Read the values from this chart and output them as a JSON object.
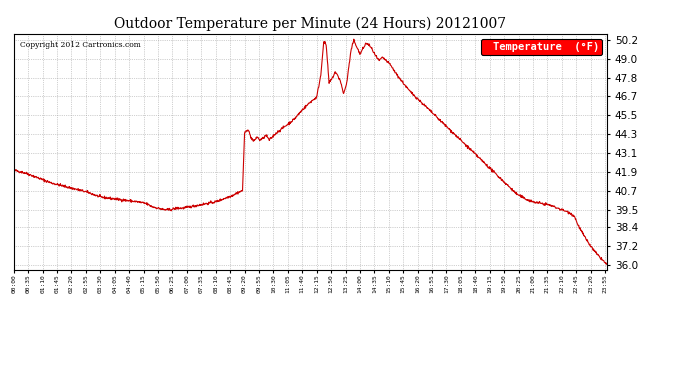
{
  "title": "Outdoor Temperature per Minute (24 Hours) 20121007",
  "copyright_text": "Copyright 2012 Cartronics.com",
  "legend_label": "Temperature  (°F)",
  "line_color": "#cc0000",
  "background_color": "#ffffff",
  "grid_color": "#aaaaaa",
  "ylim": [
    35.7,
    50.6
  ],
  "yticks": [
    36.0,
    37.2,
    38.4,
    39.5,
    40.7,
    41.9,
    43.1,
    44.3,
    45.5,
    46.7,
    47.8,
    49.0,
    50.2
  ],
  "xtick_labels": [
    "00:00",
    "00:35",
    "01:10",
    "01:45",
    "02:20",
    "02:55",
    "03:30",
    "04:05",
    "04:40",
    "05:15",
    "05:50",
    "06:25",
    "07:00",
    "07:35",
    "08:10",
    "08:45",
    "09:20",
    "09:55",
    "10:30",
    "11:05",
    "11:40",
    "12:15",
    "12:50",
    "13:25",
    "14:00",
    "14:35",
    "15:10",
    "15:45",
    "16:20",
    "16:55",
    "17:30",
    "18:05",
    "18:40",
    "19:15",
    "19:50",
    "20:25",
    "21:00",
    "21:35",
    "22:10",
    "22:45",
    "23:20",
    "23:55"
  ],
  "keypoints": [
    [
      0,
      42.0
    ],
    [
      30,
      41.8
    ],
    [
      60,
      41.5
    ],
    [
      90,
      41.2
    ],
    [
      120,
      41.0
    ],
    [
      150,
      40.8
    ],
    [
      180,
      40.6
    ],
    [
      210,
      40.3
    ],
    [
      240,
      40.2
    ],
    [
      270,
      40.1
    ],
    [
      300,
      40.0
    ],
    [
      320,
      39.9
    ],
    [
      335,
      39.7
    ],
    [
      350,
      39.6
    ],
    [
      365,
      39.5
    ],
    [
      380,
      39.5
    ],
    [
      395,
      39.6
    ],
    [
      410,
      39.6
    ],
    [
      430,
      39.7
    ],
    [
      450,
      39.8
    ],
    [
      470,
      39.9
    ],
    [
      490,
      40.0
    ],
    [
      510,
      40.2
    ],
    [
      530,
      40.4
    ],
    [
      545,
      40.6
    ],
    [
      555,
      40.7
    ],
    [
      560,
      44.3
    ],
    [
      568,
      44.6
    ],
    [
      575,
      44.1
    ],
    [
      582,
      43.8
    ],
    [
      590,
      44.1
    ],
    [
      597,
      43.9
    ],
    [
      605,
      44.0
    ],
    [
      612,
      44.2
    ],
    [
      620,
      43.9
    ],
    [
      628,
      44.1
    ],
    [
      635,
      44.3
    ],
    [
      645,
      44.5
    ],
    [
      660,
      44.8
    ],
    [
      680,
      45.2
    ],
    [
      700,
      45.8
    ],
    [
      720,
      46.3
    ],
    [
      735,
      46.6
    ],
    [
      745,
      48.0
    ],
    [
      752,
      50.1
    ],
    [
      758,
      49.9
    ],
    [
      765,
      47.5
    ],
    [
      773,
      47.8
    ],
    [
      780,
      48.2
    ],
    [
      787,
      47.9
    ],
    [
      793,
      47.6
    ],
    [
      800,
      46.8
    ],
    [
      808,
      47.5
    ],
    [
      818,
      49.5
    ],
    [
      825,
      50.2
    ],
    [
      832,
      49.8
    ],
    [
      840,
      49.3
    ],
    [
      848,
      49.7
    ],
    [
      855,
      50.0
    ],
    [
      862,
      49.9
    ],
    [
      870,
      49.6
    ],
    [
      878,
      49.2
    ],
    [
      886,
      48.9
    ],
    [
      895,
      49.1
    ],
    [
      904,
      48.9
    ],
    [
      912,
      48.7
    ],
    [
      920,
      48.4
    ],
    [
      930,
      48.0
    ],
    [
      945,
      47.5
    ],
    [
      960,
      47.0
    ],
    [
      980,
      46.5
    ],
    [
      1000,
      46.0
    ],
    [
      1020,
      45.5
    ],
    [
      1040,
      45.0
    ],
    [
      1060,
      44.5
    ],
    [
      1080,
      44.0
    ],
    [
      1100,
      43.5
    ],
    [
      1120,
      43.0
    ],
    [
      1140,
      42.5
    ],
    [
      1160,
      42.0
    ],
    [
      1180,
      41.5
    ],
    [
      1200,
      41.0
    ],
    [
      1220,
      40.5
    ],
    [
      1240,
      40.2
    ],
    [
      1260,
      40.0
    ],
    [
      1280,
      39.9
    ],
    [
      1300,
      39.8
    ],
    [
      1310,
      39.7
    ],
    [
      1320,
      39.6
    ],
    [
      1330,
      39.5
    ],
    [
      1340,
      39.4
    ],
    [
      1350,
      39.3
    ],
    [
      1360,
      39.1
    ],
    [
      1370,
      38.5
    ],
    [
      1385,
      37.8
    ],
    [
      1400,
      37.2
    ],
    [
      1415,
      36.7
    ],
    [
      1430,
      36.3
    ],
    [
      1440,
      36.0
    ]
  ]
}
